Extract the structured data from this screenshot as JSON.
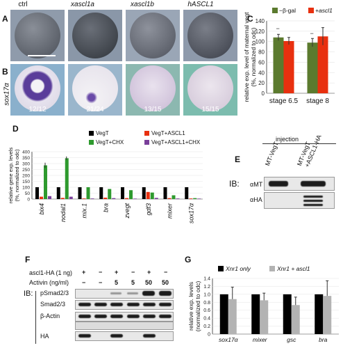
{
  "panels": {
    "A": "A",
    "B": "B",
    "C": "C",
    "D": "D",
    "E": "E",
    "F": "F",
    "G": "G"
  },
  "panel_A": {
    "columns": [
      "ctrl",
      "xascl1a",
      "xascl1b",
      "hASCL1"
    ],
    "embryo_colors": [
      "#6b6f78",
      "#4c5158",
      "#6a6e78",
      "#585c66"
    ]
  },
  "panel_B": {
    "row_label": "sox17α",
    "counts": [
      "12/12",
      "21/24",
      "13/15",
      "15/15"
    ],
    "bg_colors": [
      "#8ab0cc",
      "#9ab6cc",
      "#8cb8b0",
      "#7cbcae"
    ]
  },
  "chart_C": {
    "type": "bar",
    "legend": [
      "−β-gal",
      "+ascl1"
    ],
    "ylabel_line1": "relative exp. level of maternal vegt",
    "ylabel_line2": "(%, normalized to odc)",
    "categories": [
      "stage 6.5",
      "stage 8"
    ],
    "ylim": [
      0,
      140
    ],
    "yticks": [
      "0",
      "20",
      "40",
      "60",
      "80",
      "100",
      "120",
      "140"
    ],
    "series": [
      {
        "name": "−β-gal",
        "color": "#5b7a2e",
        "values": [
          108,
          98
        ],
        "err": [
          6,
          8
        ]
      },
      {
        "name": "+ascl1",
        "color": "#e8300f",
        "values": [
          101,
          110
        ],
        "err": [
          7,
          17
        ]
      }
    ],
    "marks": [
      "−",
      "−"
    ]
  },
  "chart_D": {
    "type": "bar",
    "legend": [
      "VegT",
      "VegT+ASCL1",
      "VegT+CHX",
      "VegT+ASCL1+CHX"
    ],
    "ylabel_line1": "relative gene exp. levels",
    "ylabel_line2": "(%, normalized to odc)",
    "categories": [
      "bix4",
      "nodal1",
      "mix.1",
      "bra",
      "zvegt",
      "gdf3",
      "mixer",
      "sox17α"
    ],
    "ylim": [
      0,
      400
    ],
    "yticks": [
      "0",
      "50",
      "100",
      "150",
      "200",
      "250",
      "300",
      "350",
      "400"
    ],
    "series": [
      {
        "name": "VegT",
        "color": "#000000",
        "values": [
          100,
          100,
          100,
          100,
          100,
          100,
          100,
          100
        ]
      },
      {
        "name": "VegT+ASCL1",
        "color": "#e8300f",
        "values": [
          20,
          10,
          5,
          12,
          8,
          60,
          8,
          5
        ]
      },
      {
        "name": "VegT+CHX",
        "color": "#2e9a2e",
        "values": [
          285,
          345,
          100,
          85,
          75,
          55,
          32,
          8
        ]
      },
      {
        "name": "VegT+ASCL1+CHX",
        "color": "#7a3f9a",
        "values": [
          25,
          20,
          5,
          8,
          4,
          10,
          5,
          4
        ]
      }
    ]
  },
  "panel_E": {
    "injection_label": "injection",
    "lane1": "MT-VegT",
    "lane2_line1": "MT-VegT",
    "lane2_line2": "+ASCL1-HA",
    "ib": "IB:",
    "rows": [
      "αMT",
      "αHA"
    ]
  },
  "panel_F": {
    "row1_label": "ascl1-HA (1 ng)",
    "row1_values": [
      "+",
      "−",
      "+",
      "−",
      "+",
      "−"
    ],
    "row2_label": "Activin (ng/ml)",
    "row2_values": [
      "−",
      "−",
      "5",
      "5",
      "50",
      "50"
    ],
    "ib": "IB:",
    "blots": [
      "pSmad2/3",
      "Smad2/3",
      "β-Actin",
      "HA"
    ]
  },
  "chart_G": {
    "type": "bar",
    "legend": [
      "Xnr1 only",
      "Xnr1 + ascl1"
    ],
    "ylabel_line1": "relative exp. levels",
    "ylabel_line2": "(normalized to odc)",
    "categories": [
      "sox17α",
      "mixer",
      "gsc",
      "bra"
    ],
    "ylim": [
      0,
      1.4
    ],
    "yticks": [
      "0",
      "0.2",
      "0.4",
      "0.6",
      "0.8",
      "1.0",
      "1.2",
      "1.4"
    ],
    "series": [
      {
        "name": "Xnr1 only",
        "color": "#000000",
        "values": [
          1.0,
          1.0,
          1.0,
          1.0
        ]
      },
      {
        "name": "Xnr1 + ascl1",
        "color": "#b3b3b3",
        "values": [
          0.88,
          0.85,
          0.73,
          0.96
        ],
        "err": [
          0.3,
          0.18,
          0.2,
          0.38
        ]
      }
    ]
  }
}
